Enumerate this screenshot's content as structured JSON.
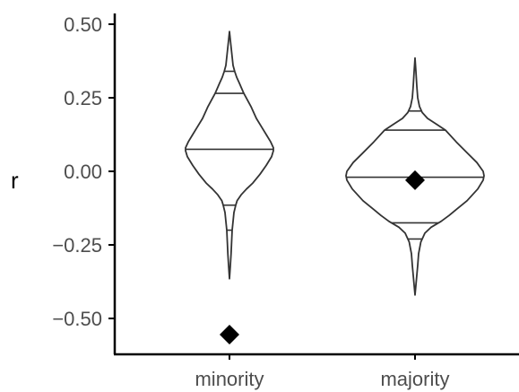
{
  "chart_data": {
    "type": "violin",
    "title": "",
    "xlabel": "",
    "ylabel": "r",
    "ylim": [
      -0.6,
      0.52
    ],
    "yticks": [
      0.5,
      0.25,
      0.0,
      -0.25,
      -0.5
    ],
    "ytick_labels": [
      "0.50",
      "0.25",
      "0.00",
      "−0.25",
      "−0.50"
    ],
    "grid": false,
    "legend": "none",
    "colors": {
      "outline": "#333333",
      "point": "#000000",
      "axis": "#000000"
    },
    "categories": [
      "minority",
      "majority"
    ],
    "violins": [
      {
        "category": "minority",
        "profile": [
          [
            0.475,
            0.0
          ],
          [
            0.44,
            0.012
          ],
          [
            0.4,
            0.026
          ],
          [
            0.36,
            0.04
          ],
          [
            0.34,
            0.058
          ],
          [
            0.32,
            0.08
          ],
          [
            0.3,
            0.11
          ],
          [
            0.265,
            0.16
          ],
          [
            0.22,
            0.24
          ],
          [
            0.18,
            0.3
          ],
          [
            0.15,
            0.36
          ],
          [
            0.12,
            0.42
          ],
          [
            0.1,
            0.46
          ],
          [
            0.08,
            0.49
          ],
          [
            0.07,
            0.49
          ],
          [
            0.05,
            0.47
          ],
          [
            0.02,
            0.41
          ],
          [
            -0.01,
            0.34
          ],
          [
            -0.04,
            0.26
          ],
          [
            -0.06,
            0.19
          ],
          [
            -0.08,
            0.13
          ],
          [
            -0.1,
            0.085
          ],
          [
            -0.115,
            0.07
          ],
          [
            -0.14,
            0.05
          ],
          [
            -0.17,
            0.04
          ],
          [
            -0.2,
            0.03
          ],
          [
            -0.24,
            0.024
          ],
          [
            -0.28,
            0.018
          ],
          [
            -0.32,
            0.01
          ],
          [
            -0.365,
            0.0
          ]
        ],
        "quantiles": [
          0.34,
          0.265,
          0.075,
          -0.115,
          -0.2
        ],
        "point": -0.555
      },
      {
        "category": "majority",
        "profile": [
          [
            0.385,
            0.0
          ],
          [
            0.34,
            0.01
          ],
          [
            0.29,
            0.02
          ],
          [
            0.25,
            0.03
          ],
          [
            0.22,
            0.05
          ],
          [
            0.2,
            0.08
          ],
          [
            0.18,
            0.14
          ],
          [
            0.16,
            0.24
          ],
          [
            0.14,
            0.34
          ],
          [
            0.1,
            0.46
          ],
          [
            0.06,
            0.59
          ],
          [
            0.03,
            0.69
          ],
          [
            0.0,
            0.76
          ],
          [
            -0.015,
            0.77
          ],
          [
            -0.03,
            0.76
          ],
          [
            -0.06,
            0.7
          ],
          [
            -0.1,
            0.58
          ],
          [
            -0.13,
            0.46
          ],
          [
            -0.15,
            0.38
          ],
          [
            -0.17,
            0.29
          ],
          [
            -0.19,
            0.18
          ],
          [
            -0.21,
            0.11
          ],
          [
            -0.24,
            0.065
          ],
          [
            -0.28,
            0.04
          ],
          [
            -0.32,
            0.03
          ],
          [
            -0.37,
            0.015
          ],
          [
            -0.42,
            0.0
          ]
        ],
        "quantiles": [
          0.205,
          0.14,
          -0.02,
          -0.175,
          -0.23
        ],
        "point": -0.03
      }
    ]
  }
}
